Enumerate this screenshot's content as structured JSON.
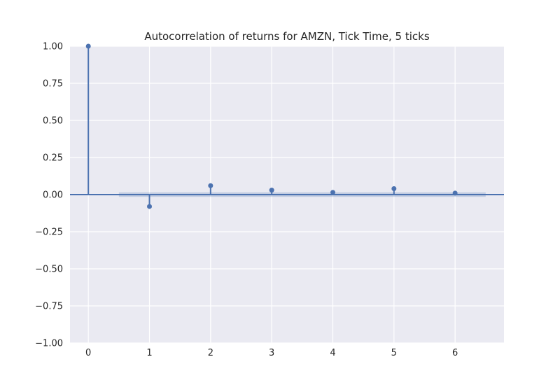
{
  "chart_data": {
    "type": "stem",
    "title": "Autocorrelation of returns for AMZN, Tick Time, 5 ticks",
    "xlabel": "",
    "ylabel": "",
    "x": [
      0,
      1,
      2,
      3,
      4,
      5,
      6
    ],
    "values": [
      1.0,
      -0.08,
      0.06,
      0.03,
      0.015,
      0.04,
      0.01
    ],
    "confidence_band": {
      "x_range": [
        0.5,
        6.5
      ],
      "lower": -0.015,
      "upper": 0.015
    },
    "xlim": [
      -0.3,
      6.8
    ],
    "ylim": [
      -1.0,
      1.0
    ],
    "x_ticks": [
      0,
      1,
      2,
      3,
      4,
      5,
      6
    ],
    "x_tick_labels": [
      "0",
      "1",
      "2",
      "3",
      "4",
      "5",
      "6"
    ],
    "y_ticks": [
      -1.0,
      -0.75,
      -0.5,
      -0.25,
      0.0,
      0.25,
      0.5,
      0.75,
      1.0
    ],
    "y_tick_labels": [
      "−1.00",
      "−0.75",
      "−0.50",
      "−0.25",
      "0.00",
      "0.25",
      "0.50",
      "0.75",
      "1.00"
    ],
    "grid": true,
    "colors": {
      "background": "#eaeaf2",
      "grid": "#ffffff",
      "series": "#4c72b0",
      "band": "#4c72b0"
    }
  }
}
